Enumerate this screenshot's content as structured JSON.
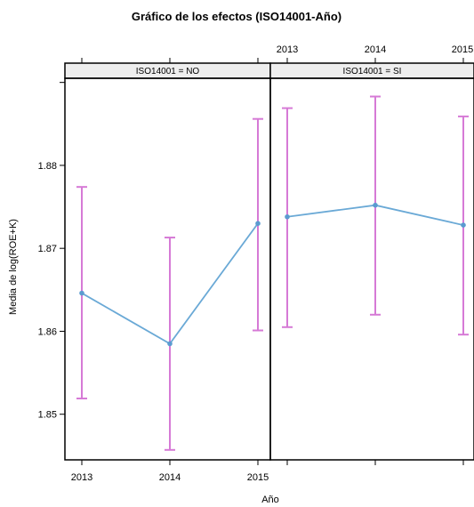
{
  "chart_data": {
    "type": "line",
    "title": "Gráfico de los efectos (ISO14001-Año)",
    "xlabel": "Año",
    "ylabel": "Media de log(ROE+K)",
    "x_categories": [
      "2013",
      "2014",
      "2015"
    ],
    "y_ticks": [
      "1.85",
      "1.86",
      "1.87",
      "1.88"
    ],
    "ylim": [
      1.8445,
      1.8905
    ],
    "panels": [
      {
        "strip": "ISO14001 = NO",
        "points": [
          {
            "x": "2013",
            "y": 1.8646,
            "lower": 1.8519,
            "upper": 1.8774
          },
          {
            "x": "2014",
            "y": 1.8585,
            "lower": 1.8457,
            "upper": 1.8713
          },
          {
            "x": "2015",
            "y": 1.873,
            "lower": 1.8601,
            "upper": 1.8856
          }
        ]
      },
      {
        "strip": "ISO14001 = SI",
        "points": [
          {
            "x": "2013",
            "y": 1.8738,
            "lower": 1.8605,
            "upper": 1.8869
          },
          {
            "x": "2014",
            "y": 1.8752,
            "lower": 1.862,
            "upper": 1.8883
          },
          {
            "x": "2015",
            "y": 1.8728,
            "lower": 1.8596,
            "upper": 1.8859
          }
        ]
      }
    ],
    "colors": {
      "line": "#6aa9d6",
      "point": "#5b9bd0",
      "errorbar": "#d67ad6",
      "strip_bg": "#eeeeee"
    },
    "grid": false
  }
}
